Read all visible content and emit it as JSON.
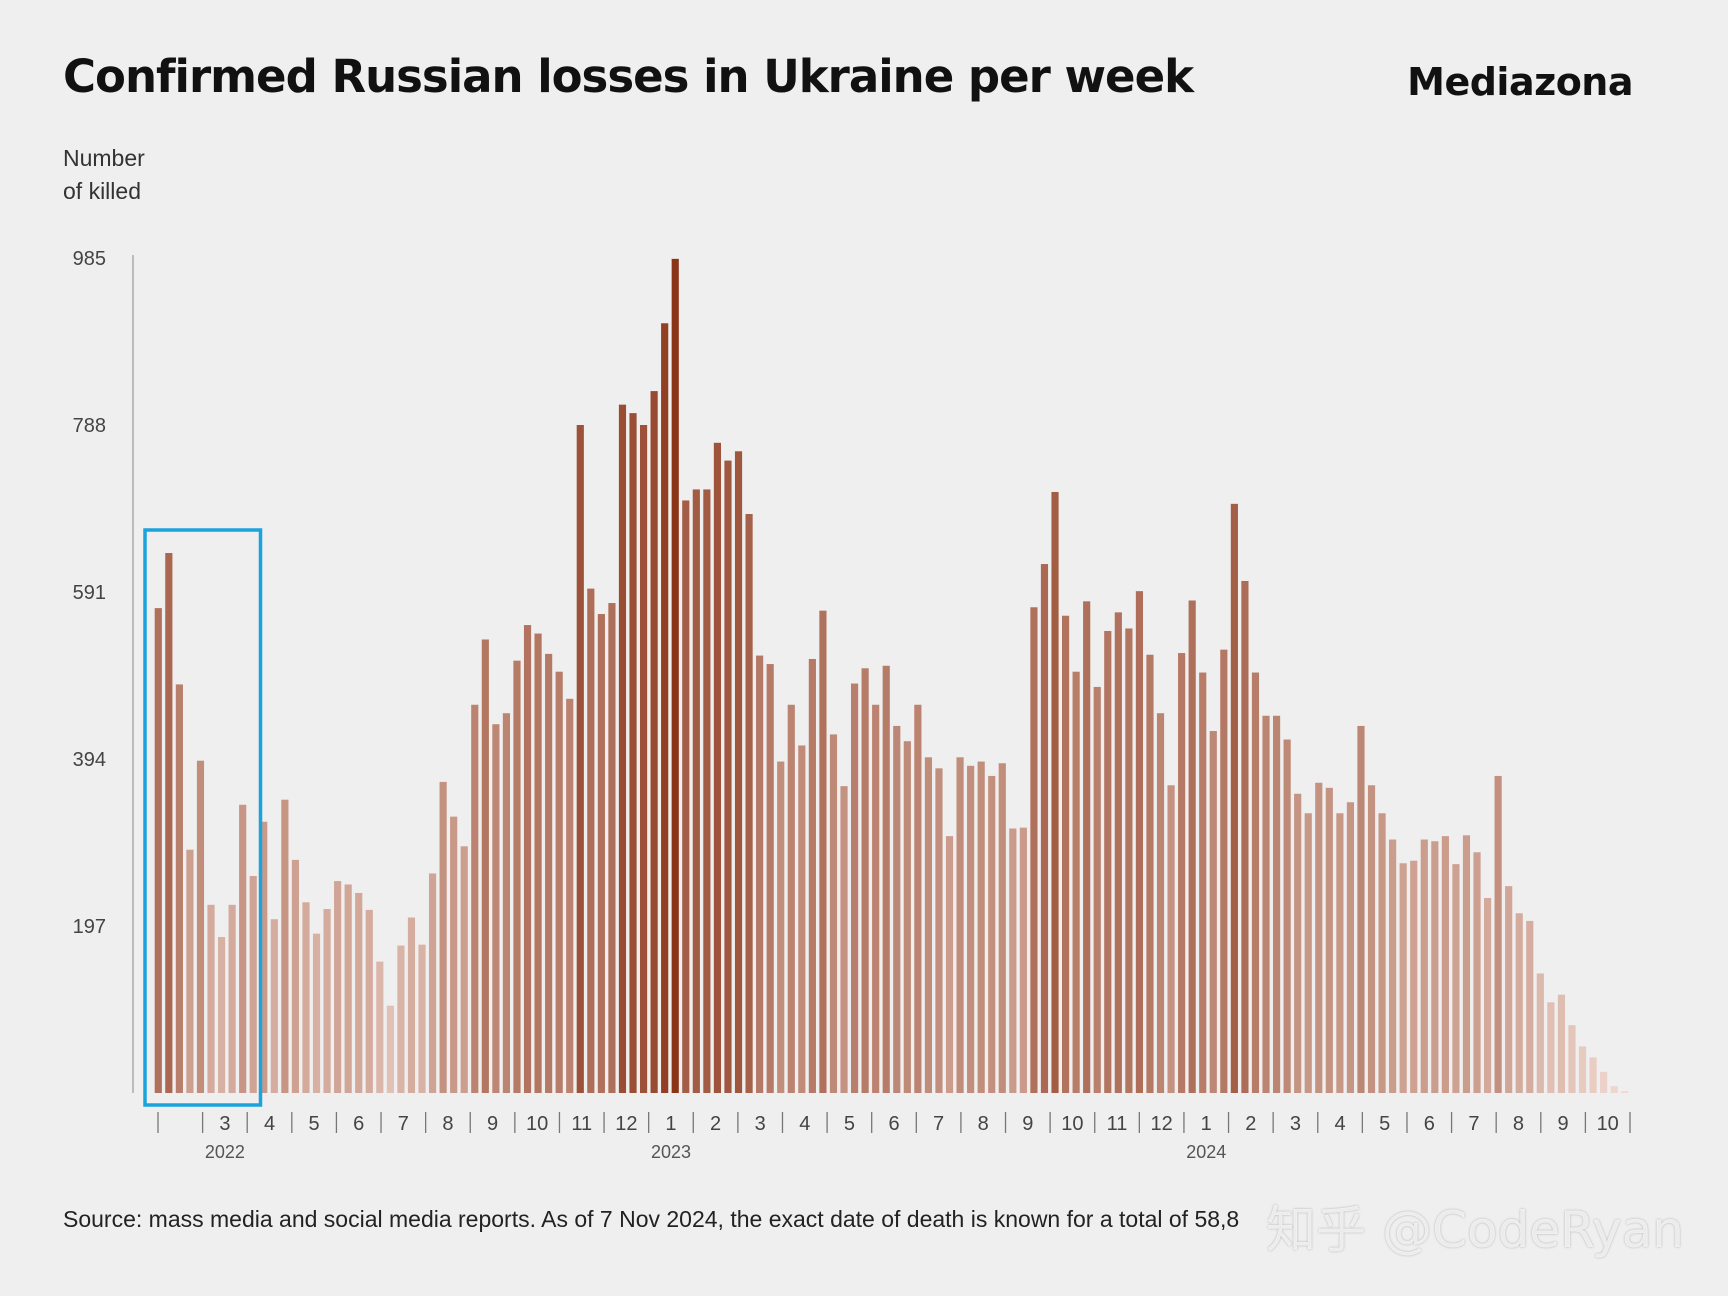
{
  "title": "Confirmed Russian losses in Ukraine per week",
  "brand": "Mediazona",
  "source_note": "Source: mass media and social media reports. As of 7 Nov 2024, the exact date of death is known for a total of 58,8",
  "watermark": "知乎 @CodeRyan",
  "colors": {
    "bar_dark": "#8a3518",
    "bar_light": "#f0d8d0",
    "highlight_box": "#1aa3dd",
    "axis": "#999999"
  },
  "chart_data": {
    "type": "bar",
    "ylabel": "Number\nof killed",
    "ylim": [
      0,
      985
    ],
    "yticks": [
      197,
      394,
      591,
      788,
      985
    ],
    "grid": false,
    "x_ticks": [
      {
        "label": "",
        "year": ""
      },
      {
        "label": "3",
        "year": "2022"
      },
      {
        "label": "4",
        "year": ""
      },
      {
        "label": "5",
        "year": ""
      },
      {
        "label": "6",
        "year": ""
      },
      {
        "label": "7",
        "year": ""
      },
      {
        "label": "8",
        "year": ""
      },
      {
        "label": "9",
        "year": ""
      },
      {
        "label": "10",
        "year": ""
      },
      {
        "label": "11",
        "year": ""
      },
      {
        "label": "12",
        "year": ""
      },
      {
        "label": "1",
        "year": "2023"
      },
      {
        "label": "2",
        "year": ""
      },
      {
        "label": "3",
        "year": ""
      },
      {
        "label": "4",
        "year": ""
      },
      {
        "label": "5",
        "year": ""
      },
      {
        "label": "6",
        "year": ""
      },
      {
        "label": "7",
        "year": ""
      },
      {
        "label": "8",
        "year": ""
      },
      {
        "label": "9",
        "year": ""
      },
      {
        "label": "10",
        "year": ""
      },
      {
        "label": "11",
        "year": ""
      },
      {
        "label": "12",
        "year": ""
      },
      {
        "label": "1",
        "year": "2024"
      },
      {
        "label": "2",
        "year": ""
      },
      {
        "label": "3",
        "year": ""
      },
      {
        "label": "4",
        "year": ""
      },
      {
        "label": "5",
        "year": ""
      },
      {
        "label": "6",
        "year": ""
      },
      {
        "label": "7",
        "year": ""
      },
      {
        "label": "8",
        "year": ""
      },
      {
        "label": "9",
        "year": ""
      },
      {
        "label": "10",
        "year": ""
      }
    ],
    "values": [
      572,
      637,
      482,
      287,
      392,
      222,
      184,
      222,
      340,
      256,
      320,
      205,
      346,
      275,
      225,
      188,
      217,
      250,
      246,
      236,
      216,
      155,
      103,
      174,
      207,
      175,
      259,
      367,
      326,
      291,
      458,
      535,
      435,
      448,
      510,
      552,
      542,
      518,
      497,
      465,
      788,
      595,
      565,
      578,
      812,
      802,
      788,
      828,
      908,
      984,
      699,
      712,
      712,
      767,
      746,
      757,
      683,
      516,
      506,
      391,
      458,
      410,
      512,
      569,
      423,
      362,
      483,
      501,
      458,
      504,
      433,
      415,
      458,
      396,
      383,
      303,
      396,
      386,
      391,
      374,
      389,
      312,
      313,
      573,
      624,
      709,
      563,
      497,
      580,
      479,
      545,
      567,
      548,
      592,
      517,
      448,
      363,
      519,
      581,
      496,
      427,
      523,
      695,
      604,
      496,
      445,
      445,
      417,
      353,
      330,
      366,
      360,
      330,
      343,
      433,
      363,
      330,
      299,
      271,
      274,
      299,
      297,
      303,
      270,
      304,
      284,
      230,
      374,
      244,
      212,
      203,
      141,
      107,
      116,
      80,
      55,
      42,
      25,
      8,
      2
    ],
    "highlight": {
      "start_index": 0,
      "end_index": 9
    }
  }
}
